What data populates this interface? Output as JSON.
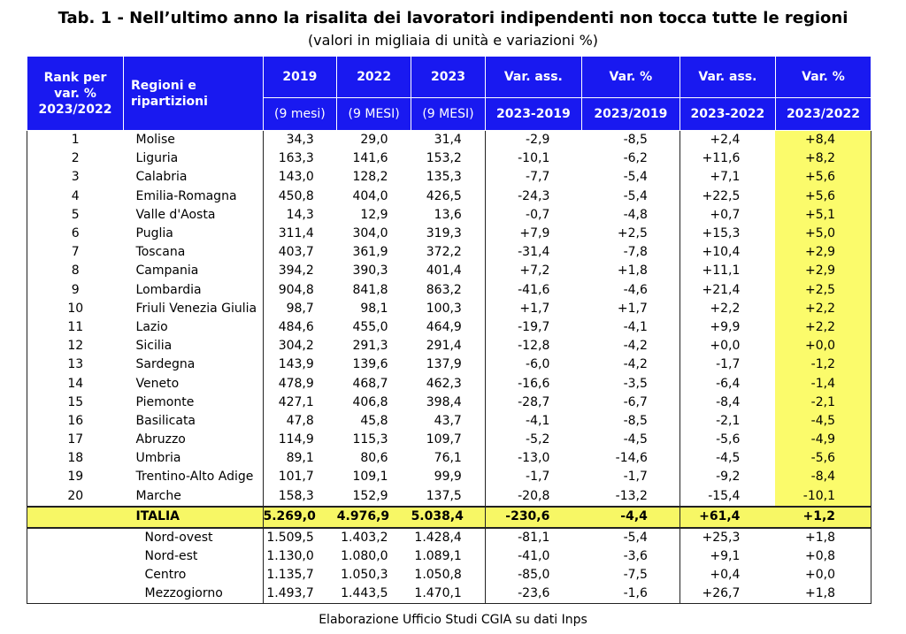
{
  "title": "Tab. 1 - Nell’ultimo anno la risalita dei lavoratori indipendenti non tocca tutte le regioni",
  "subtitle": "(valori in migliaia di unità e variazioni %)",
  "header": {
    "rank": "Rank per var. % 2023/2022",
    "region": "Regioni e ripartizioni",
    "y2019": "2019",
    "y2022": "2022",
    "y2023": "2023",
    "var_ass_1": "Var. ass.",
    "var_pct_1": "Var. %",
    "var_ass_2": "Var. ass.",
    "var_pct_2": "Var. %",
    "sub_2019": "(9 mesi)",
    "sub_2022": "(9 MESI)",
    "sub_2023": "(9 MESI)",
    "sub_va1": "2023-2019",
    "sub_vp1": "2023/2019",
    "sub_va2": "2023-2022",
    "sub_vp2": "2023/2022"
  },
  "rows": [
    [
      "1",
      "Molise",
      "34,3",
      "29,0",
      "31,4",
      "-2,9",
      "-8,5",
      "+2,4",
      "+8,4"
    ],
    [
      "2",
      "Liguria",
      "163,3",
      "141,6",
      "153,2",
      "-10,1",
      "-6,2",
      "+11,6",
      "+8,2"
    ],
    [
      "3",
      "Calabria",
      "143,0",
      "128,2",
      "135,3",
      "-7,7",
      "-5,4",
      "+7,1",
      "+5,6"
    ],
    [
      "4",
      "Emilia-Romagna",
      "450,8",
      "404,0",
      "426,5",
      "-24,3",
      "-5,4",
      "+22,5",
      "+5,6"
    ],
    [
      "5",
      "Valle d'Aosta",
      "14,3",
      "12,9",
      "13,6",
      "-0,7",
      "-4,8",
      "+0,7",
      "+5,1"
    ],
    [
      "6",
      "Puglia",
      "311,4",
      "304,0",
      "319,3",
      "+7,9",
      "+2,5",
      "+15,3",
      "+5,0"
    ],
    [
      "7",
      "Toscana",
      "403,7",
      "361,9",
      "372,2",
      "-31,4",
      "-7,8",
      "+10,4",
      "+2,9"
    ],
    [
      "8",
      "Campania",
      "394,2",
      "390,3",
      "401,4",
      "+7,2",
      "+1,8",
      "+11,1",
      "+2,9"
    ],
    [
      "9",
      "Lombardia",
      "904,8",
      "841,8",
      "863,2",
      "-41,6",
      "-4,6",
      "+21,4",
      "+2,5"
    ],
    [
      "10",
      "Friuli Venezia Giulia",
      "98,7",
      "98,1",
      "100,3",
      "+1,7",
      "+1,7",
      "+2,2",
      "+2,2"
    ],
    [
      "11",
      "Lazio",
      "484,6",
      "455,0",
      "464,9",
      "-19,7",
      "-4,1",
      "+9,9",
      "+2,2"
    ],
    [
      "12",
      "Sicilia",
      "304,2",
      "291,3",
      "291,4",
      "-12,8",
      "-4,2",
      "+0,0",
      "+0,0"
    ],
    [
      "13",
      "Sardegna",
      "143,9",
      "139,6",
      "137,9",
      "-6,0",
      "-4,2",
      "-1,7",
      "-1,2"
    ],
    [
      "14",
      "Veneto",
      "478,9",
      "468,7",
      "462,3",
      "-16,6",
      "-3,5",
      "-6,4",
      "-1,4"
    ],
    [
      "15",
      "Piemonte",
      "427,1",
      "406,8",
      "398,4",
      "-28,7",
      "-6,7",
      "-8,4",
      "-2,1"
    ],
    [
      "16",
      "Basilicata",
      "47,8",
      "45,8",
      "43,7",
      "-4,1",
      "-8,5",
      "-2,1",
      "-4,5"
    ],
    [
      "17",
      "Abruzzo",
      "114,9",
      "115,3",
      "109,7",
      "-5,2",
      "-4,5",
      "-5,6",
      "-4,9"
    ],
    [
      "18",
      "Umbria",
      "89,1",
      "80,6",
      "76,1",
      "-13,0",
      "-14,6",
      "-4,5",
      "-5,6"
    ],
    [
      "19",
      "Trentino-Alto Adige",
      "101,7",
      "109,1",
      "99,9",
      "-1,7",
      "-1,7",
      "-9,2",
      "-8,4"
    ],
    [
      "20",
      "Marche",
      "158,3",
      "152,9",
      "137,5",
      "-20,8",
      "-13,2",
      "-15,4",
      "-10,1"
    ]
  ],
  "italia": [
    "",
    "ITALIA",
    "5.269,0",
    "4.976,9",
    "5.038,4",
    "-230,6",
    "-4,4",
    "+61,4",
    "+1,2"
  ],
  "areas": [
    [
      "",
      "Nord-ovest",
      "1.509,5",
      "1.403,2",
      "1.428,4",
      "-81,1",
      "-5,4",
      "+25,3",
      "+1,8"
    ],
    [
      "",
      "Nord-est",
      "1.130,0",
      "1.080,0",
      "1.089,1",
      "-41,0",
      "-3,6",
      "+9,1",
      "+0,8"
    ],
    [
      "",
      "Centro",
      "1.135,7",
      "1.050,3",
      "1.050,8",
      "-85,0",
      "-7,5",
      "+0,4",
      "+0,0"
    ],
    [
      "",
      "Mezzogiorno",
      "1.493,7",
      "1.443,5",
      "1.470,1",
      "-23,6",
      "-1,6",
      "+26,7",
      "+1,8"
    ]
  ],
  "source": "Elaborazione Ufficio Studi CGIA su dati Inps",
  "colors": {
    "header_bg": "#1919f0",
    "highlight": "#fbfb6b",
    "italia_bg": "#f7f765"
  }
}
